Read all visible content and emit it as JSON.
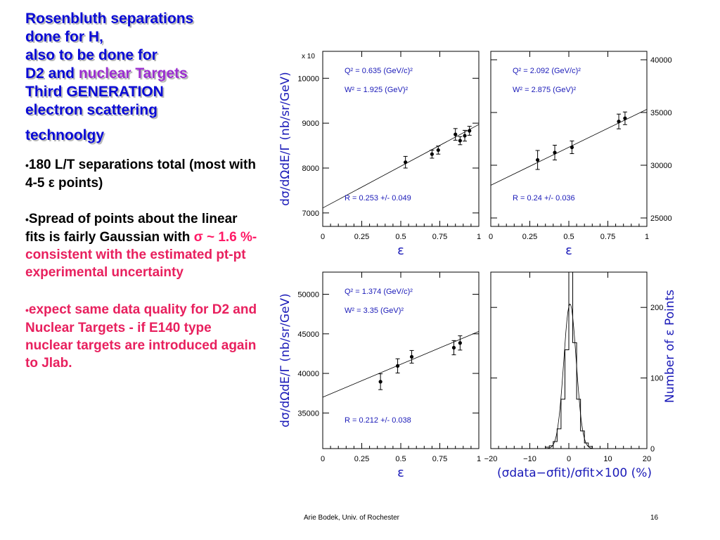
{
  "slide": {
    "title_lines": {
      "l1": "Rosenbluth separations",
      "l2": "done  for H,",
      "l3": "also to be done for",
      "l4a": "D2 and ",
      "l4b": "nuclear Targets",
      "l5": "Third GENERATION",
      "l6": "electron scattering",
      "l7": "technoolgy"
    },
    "bullets": {
      "b1_marker": "•",
      "b1_text": "180 L/T separations total (most with 4-5 ",
      "b1_sym": "ε",
      "b1_tail": " points)",
      "b2_marker": "•",
      "b2_text": "Spread of points about the linear fits is fairly Gaussian with ",
      "b2_sym": "σ ~",
      "b2_value": " 1.6 %-",
      "b2_red": "consistent with the estimated pt-pt experimental uncertainty",
      "b3_marker": "•",
      "b3_text": "expect same data quality for D2 and Nuclear Targets - if E140 type nuclear targets are introduced again to Jlab."
    },
    "footer": "Arie Bodek,  Univ. of Rochester",
    "page_number": "16"
  },
  "colors": {
    "title_blue": "#0a0ad6",
    "title_magenta": "#9b2fd0",
    "red_text": "#e8205e",
    "axis_label_blue": "#1a1ab8"
  },
  "chart_data": [
    {
      "type": "scatter",
      "panel": "top-left",
      "ylabel": "dσ/dΩdE/Γ  (nb/sr/GeV)",
      "xlabel": "ε",
      "ylim": [
        6700,
        10600
      ],
      "xlim": [
        0,
        1
      ],
      "y_multiplier": "x 10",
      "x_ticks": [
        "0",
        "0.25",
        "0.5",
        "0.75",
        "1"
      ],
      "y_ticks": [
        "7000",
        "8000",
        "9000",
        "10000"
      ],
      "q2": "Q² = 0.635 (GeV/c)²",
      "w2": "W² = 1.925 (GeV)²",
      "fit_text": "R = 0.253  +/-  0.049",
      "points": [
        {
          "x": 0.53,
          "y": 8130,
          "err": 130
        },
        {
          "x": 0.7,
          "y": 8310,
          "err": 90
        },
        {
          "x": 0.74,
          "y": 8400,
          "err": 90
        },
        {
          "x": 0.85,
          "y": 8750,
          "err": 130
        },
        {
          "x": 0.88,
          "y": 8610,
          "err": 90
        },
        {
          "x": 0.91,
          "y": 8720,
          "err": 120
        },
        {
          "x": 0.94,
          "y": 8830,
          "err": 100
        }
      ],
      "fit": {
        "x0": 0,
        "y0": 7110,
        "x1": 1,
        "y1": 8970
      }
    },
    {
      "type": "scatter",
      "panel": "top-right",
      "xlabel": "ε",
      "ylim": [
        24200,
        40800
      ],
      "xlim": [
        0,
        1
      ],
      "x_ticks": [
        "0",
        "0.25",
        "0.5",
        "0.75",
        "1"
      ],
      "y_ticks": [
        "25000",
        "30000",
        "35000",
        "40000"
      ],
      "q2": "Q² = 2.092 (GeV/c)²",
      "w2": "W² = 2.875 (GeV)²",
      "fit_text": "R = 0.24  +/-  0.036",
      "points": [
        {
          "x": 0.3,
          "y": 30500,
          "err": 900
        },
        {
          "x": 0.41,
          "y": 31200,
          "err": 700
        },
        {
          "x": 0.52,
          "y": 31700,
          "err": 600
        },
        {
          "x": 0.82,
          "y": 34150,
          "err": 700
        },
        {
          "x": 0.86,
          "y": 34450,
          "err": 600
        }
      ],
      "fit": {
        "x0": 0,
        "y0": 28100,
        "x1": 1,
        "y1": 35300
      }
    },
    {
      "type": "scatter",
      "panel": "bottom-left",
      "ylabel": "dσ/dΩdE/Γ  (nb/sr/GeV)",
      "xlabel": "ε",
      "ylim": [
        30500,
        52800
      ],
      "xlim": [
        0,
        1
      ],
      "x_ticks": [
        "0",
        "0.25",
        "0.5",
        "0.75",
        "1"
      ],
      "y_ticks": [
        "35000",
        "40000",
        "45000",
        "50000"
      ],
      "q2": "Q² = 1.374 (GeV/c)²",
      "w2": "W² = 3.35 (GeV)²",
      "fit_text": "R = 0.212  +/-  0.038",
      "points": [
        {
          "x": 0.37,
          "y": 38950,
          "err": 1000
        },
        {
          "x": 0.48,
          "y": 40950,
          "err": 900
        },
        {
          "x": 0.57,
          "y": 42100,
          "err": 800
        },
        {
          "x": 0.84,
          "y": 43250,
          "err": 900
        },
        {
          "x": 0.88,
          "y": 43850,
          "err": 900
        }
      ],
      "fit": {
        "x0": 0,
        "y0": 37000,
        "x1": 1,
        "y1": 45300
      }
    },
    {
      "type": "bar",
      "panel": "bottom-right",
      "ylabel": "Number of ε Points",
      "xlabel": "(σdata−σfit)/σfit×100 (%)",
      "xlim": [
        -20,
        20
      ],
      "ylim": [
        0,
        250
      ],
      "x_ticks": [
        "−20",
        "−10",
        "0",
        "10",
        "20"
      ],
      "y_ticks": [
        "0",
        "100",
        "200"
      ],
      "bin_width": 1,
      "bins_x": [
        -6,
        -5,
        -4,
        -3,
        -2,
        -1,
        0,
        1,
        2,
        3,
        4,
        5
      ],
      "values": [
        2,
        4,
        10,
        28,
        70,
        140,
        250,
        150,
        70,
        25,
        8,
        3
      ],
      "gauss_fit": {
        "mu": 0.3,
        "sigma": 1.6,
        "amp": 205
      }
    }
  ]
}
